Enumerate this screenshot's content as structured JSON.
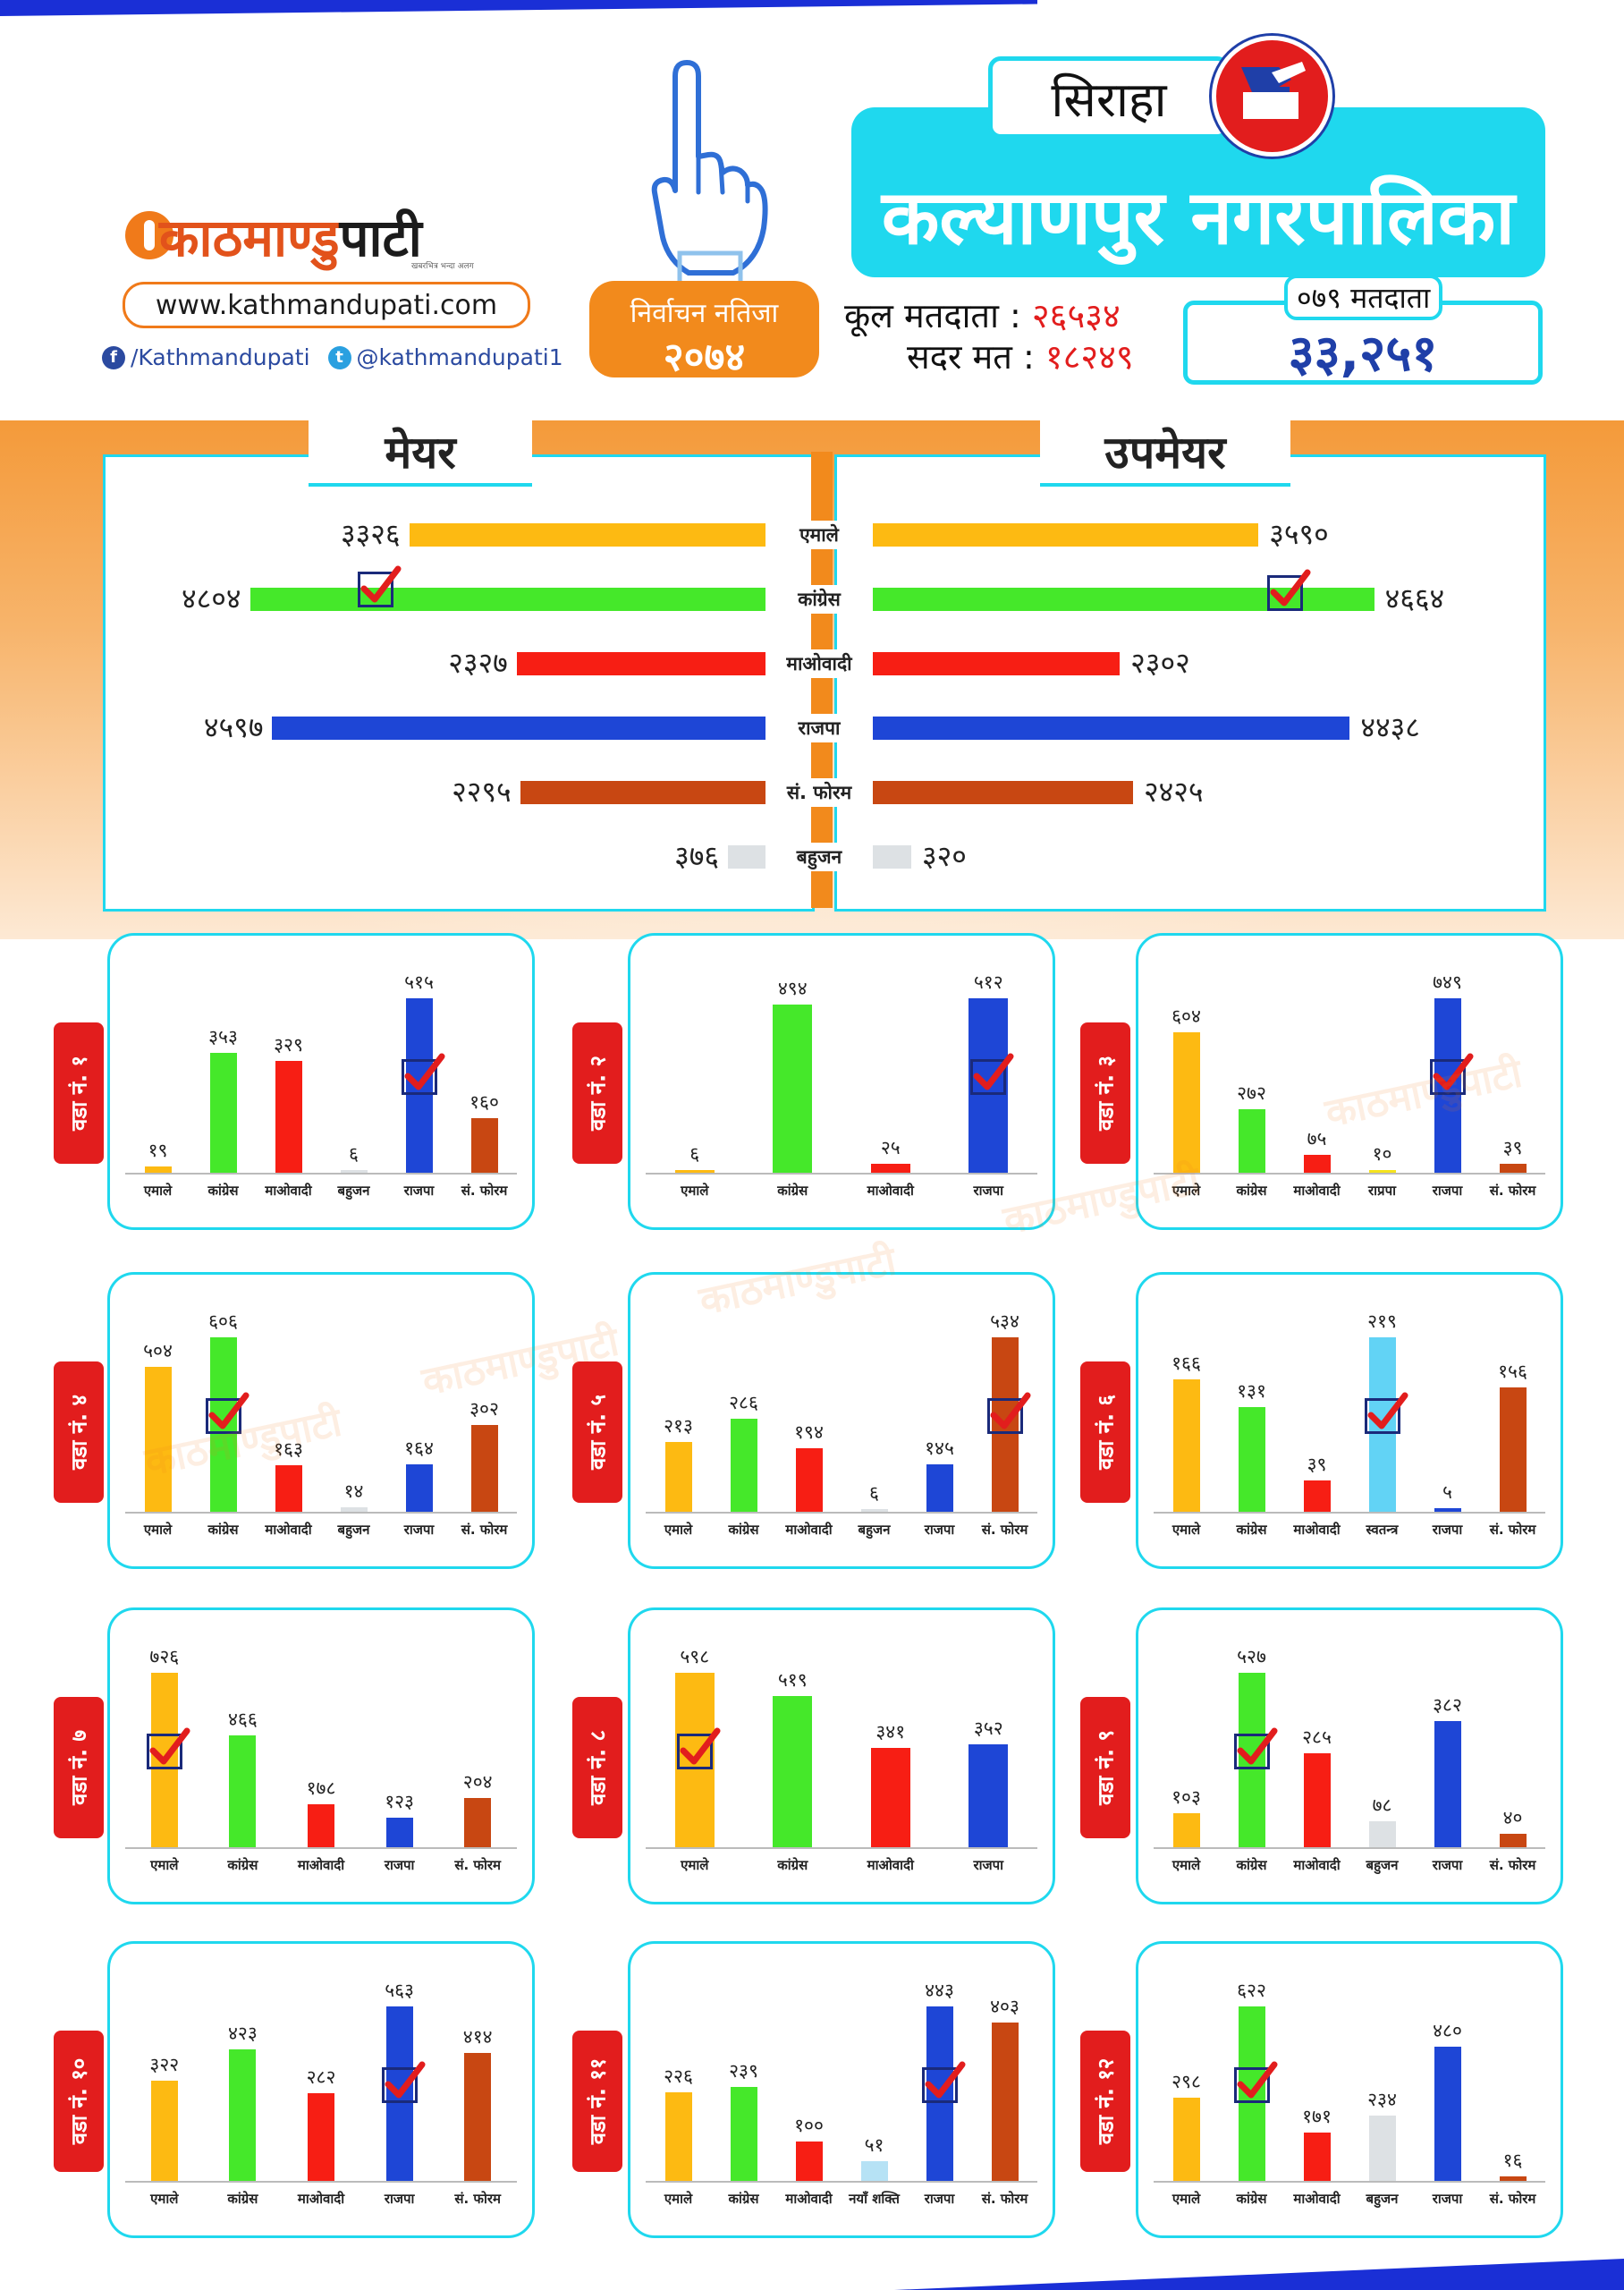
{
  "header": {
    "logo_orange": "काठमाण्डु",
    "logo_black": "पाटी",
    "tagline": "खबरभित्र भन्दा अलग",
    "website": "www.kathmandupati.com",
    "facebook": "/Kathmandupati",
    "twitter": "@kathmandupati1",
    "badge_line1": "निर्वाचन नतिजा",
    "badge_line2": "२०७४",
    "district": "सिराहा",
    "municipality": "कल्याणपुर नगरपालिका",
    "total_voters_label": "कूल मतदाता :",
    "total_voters_value": "२६५३४",
    "valid_votes_label": "सदर मत :",
    "valid_votes_value": "१८२४९",
    "voters_079_label": "०७९ मतदाता",
    "voters_079_value": "३३,२५१"
  },
  "colors": {
    "एमाले": "#fdba12",
    "कांग्रेस": "#45e82a",
    "माओवादी": "#f71e14",
    "राजपा": "#1e46d6",
    "सं. फोरम": "#c84712",
    "बहुजन": "#dde1e4",
    "राप्रपा": "#f5e31c",
    "स्वतन्त्र": "#62d3f5",
    "नयाँ शक्ति": "#b6e2f5"
  },
  "chart_data": [
    {
      "type": "bar",
      "title": "मेयर",
      "categories": [
        "एमाले",
        "कांग्रेस",
        "माओवादी",
        "राजपा",
        "सं. फोरम",
        "बहुजन"
      ],
      "values": [
        3326,
        4804,
        2327,
        4597,
        2295,
        376
      ],
      "value_labels": [
        "३३२६",
        "४८०४",
        "२३२७",
        "४५९७",
        "२२९५",
        "३७६"
      ],
      "winner": "कांग्रेस"
    },
    {
      "type": "bar",
      "title": "उपमेयर",
      "categories": [
        "एमाले",
        "कांग्रेस",
        "माओवादी",
        "राजपा",
        "सं. फोरम",
        "बहुजन"
      ],
      "values": [
        3590,
        4664,
        2302,
        4438,
        2425,
        320
      ],
      "value_labels": [
        "३५९०",
        "४६६४",
        "२३०२",
        "४४३८",
        "२४२५",
        "३२०"
      ],
      "winner": "कांग्रेस"
    },
    {
      "type": "bar",
      "title": "वडा नं. १",
      "categories": [
        "एमाले",
        "कांग्रेस",
        "माओवादी",
        "बहुजन",
        "राजपा",
        "सं. फोरम"
      ],
      "values": [
        19,
        353,
        329,
        6,
        515,
        160
      ],
      "value_labels": [
        "१९",
        "३५३",
        "३२९",
        "६",
        "५१५",
        "१६०"
      ],
      "winner": "राजपा"
    },
    {
      "type": "bar",
      "title": "वडा नं. २",
      "categories": [
        "एमाले",
        "कांग्रेस",
        "माओवादी",
        "राजपा"
      ],
      "values": [
        6,
        494,
        25,
        512
      ],
      "value_labels": [
        "६",
        "४९४",
        "२५",
        "५१२"
      ],
      "winner": "राजपा"
    },
    {
      "type": "bar",
      "title": "वडा नं. ३",
      "categories": [
        "एमाले",
        "कांग्रेस",
        "माओवादी",
        "राप्रपा",
        "राजपा",
        "सं. फोरम"
      ],
      "values": [
        604,
        272,
        75,
        10,
        749,
        39
      ],
      "value_labels": [
        "६०४",
        "२७२",
        "७५",
        "१०",
        "७४९",
        "३९"
      ],
      "winner": "राजपा"
    },
    {
      "type": "bar",
      "title": "वडा नं. ४",
      "categories": [
        "एमाले",
        "कांग्रेस",
        "माओवादी",
        "बहुजन",
        "राजपा",
        "सं. फोरम"
      ],
      "values": [
        504,
        606,
        163,
        14,
        164,
        302
      ],
      "value_labels": [
        "५०४",
        "६०६",
        "१६३",
        "१४",
        "१६४",
        "३०२"
      ],
      "winner": "कांग्रेस"
    },
    {
      "type": "bar",
      "title": "वडा नं. ५",
      "categories": [
        "एमाले",
        "कांग्रेस",
        "माओवादी",
        "बहुजन",
        "राजपा",
        "सं. फोरम"
      ],
      "values": [
        213,
        286,
        194,
        6,
        145,
        534
      ],
      "value_labels": [
        "२१३",
        "२८६",
        "१९४",
        "६",
        "१४५",
        "५३४"
      ],
      "winner": "सं. फोरम"
    },
    {
      "type": "bar",
      "title": "वडा नं. ६",
      "categories": [
        "एमाले",
        "कांग्रेस",
        "माओवादी",
        "स्वतन्त्र",
        "राजपा",
        "सं. फोरम"
      ],
      "values": [
        166,
        131,
        39,
        219,
        5,
        156
      ],
      "value_labels": [
        "१६६",
        "१३१",
        "३९",
        "२१९",
        "५",
        "१५६"
      ],
      "winner": "स्वतन्त्र"
    },
    {
      "type": "bar",
      "title": "वडा नं. ७",
      "categories": [
        "एमाले",
        "कांग्रेस",
        "माओवादी",
        "राजपा",
        "सं. फोरम"
      ],
      "values": [
        726,
        466,
        178,
        123,
        204
      ],
      "value_labels": [
        "७२६",
        "४६६",
        "१७८",
        "१२३",
        "२०४"
      ],
      "winner": "एमाले"
    },
    {
      "type": "bar",
      "title": "वडा नं. ८",
      "categories": [
        "एमाले",
        "कांग्रेस",
        "माओवादी",
        "राजपा"
      ],
      "values": [
        598,
        519,
        341,
        352
      ],
      "value_labels": [
        "५९८",
        "५१९",
        "३४१",
        "३५२"
      ],
      "winner": "एमाले"
    },
    {
      "type": "bar",
      "title": "वडा नं. ९",
      "categories": [
        "एमाले",
        "कांग्रेस",
        "माओवादी",
        "बहुजन",
        "राजपा",
        "सं. फोरम"
      ],
      "values": [
        103,
        527,
        285,
        78,
        382,
        40
      ],
      "value_labels": [
        "१०३",
        "५२७",
        "२८५",
        "७८",
        "३८२",
        "४०"
      ],
      "winner": "कांग्रेस"
    },
    {
      "type": "bar",
      "title": "वडा नं. १०",
      "categories": [
        "एमाले",
        "कांग्रेस",
        "माओवादी",
        "राजपा",
        "सं. फोरम"
      ],
      "values": [
        322,
        423,
        282,
        563,
        414
      ],
      "value_labels": [
        "३२२",
        "४२३",
        "२८२",
        "५६३",
        "४१४"
      ],
      "winner": "राजपा"
    },
    {
      "type": "bar",
      "title": "वडा नं. ११",
      "categories": [
        "एमाले",
        "कांग्रेस",
        "माओवादी",
        "नयाँ शक्ति",
        "राजपा",
        "सं. फोरम"
      ],
      "values": [
        226,
        239,
        100,
        51,
        443,
        403
      ],
      "value_labels": [
        "२२६",
        "२३९",
        "१००",
        "५१",
        "४४३",
        "४०३"
      ],
      "winner": "राजपा"
    },
    {
      "type": "bar",
      "title": "वडा नं. १२",
      "categories": [
        "एमाले",
        "कांग्रेस",
        "माओवादी",
        "बहुजन",
        "राजपा",
        "सं. फोरम"
      ],
      "values": [
        298,
        622,
        171,
        234,
        480,
        16
      ],
      "value_labels": [
        "२९८",
        "६२२",
        "१७१",
        "२३४",
        "४८०",
        "१६"
      ],
      "winner": "कांग्रेस"
    }
  ]
}
